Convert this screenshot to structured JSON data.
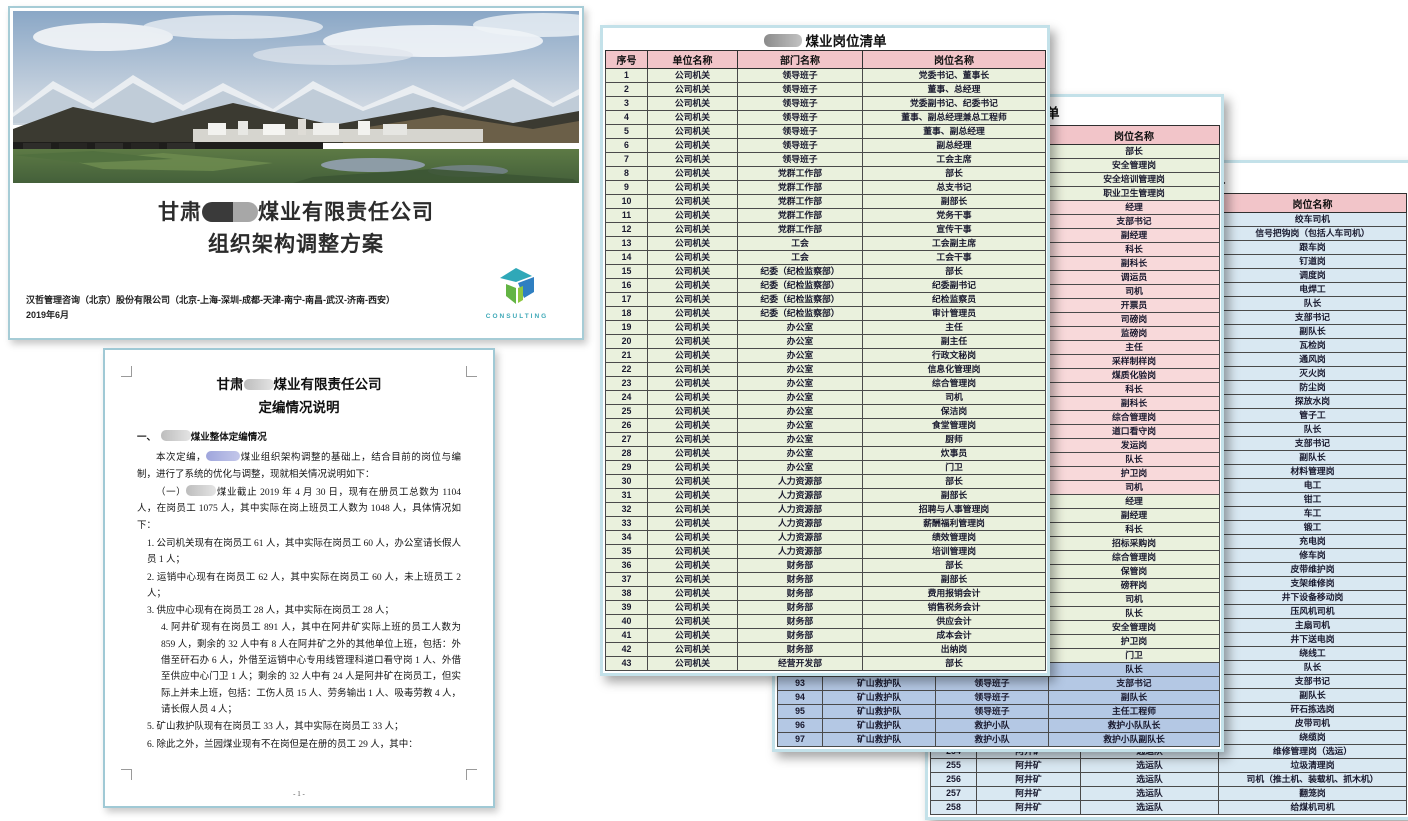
{
  "colors": {
    "g": "#eaf1dd",
    "p": "#f8d9da",
    "b": "#b4c8e4",
    "l": "#d9e8f2",
    "header_pink": "#f2c5c9",
    "sheet_border": "#c3e1e9",
    "accent_teal": "#3fa9b8"
  },
  "cover": {
    "title_prefix": "甘肃",
    "title_suffix": "煤业有限责任公司",
    "title_line2": "组织架构调整方案",
    "footer_line1": "汉哲管理咨询（北京）股份有限公司（北京-上海-深圳-成都-天津-南宁-南昌-武汉-济南-西安）",
    "footer_line2": "2019年6月",
    "logo_text": "CONSULTING"
  },
  "doc": {
    "title_prefix": "甘肃",
    "title_suffix": "煤业有限责任公司",
    "title_line2": "定编情况说明",
    "head_prefix": "一、",
    "head_text": "煤业整体定编情况",
    "para1_prefix": "本次定编，",
    "para1_text": "煤业组织架构调整的基础上，结合目前的岗位与编制，进行了系统的优化与调整，现就相关情况说明如下：",
    "para2_prefix": "（一）",
    "para2_text": "煤业截止 2019 年 4 月 30 日，现有在册员工总数为 1104 人，在岗员工 1075 人，其中实际在岗上班员工人数为 1048 人，具体情况如下：",
    "items": [
      "1. 公司机关现有在岗员工 61 人，其中实际在岗员工 60 人，办公室请长假人员 1 人；",
      "2. 运销中心现有在岗员工 62 人，其中实际在岗员工 60 人，未上班员工 2 人；",
      "3. 供应中心现有在岗员工 28 人，其中实际在岗员工 28 人；",
      "4. 阿井矿现有在岗员工 891 人，其中在阿井矿实际上班的员工人数为 859 人，剩余的 32 人中有 8 人在阿井矿之外的其他单位上班，包括：外借至矸石办 6 人，外借至运销中心专用线管理科道口看守岗 1 人、外借至供应中心门卫 1 人；剩余的 32 人中有 24 人是阿井矿在岗员工，但实际上并未上班，包括：工伤人员 15 人、劳务输出 1 人、吸毒劳教 4 人，请长假人员 4 人；",
      "5. 矿山救护队现有在岗员工 33 人，其中实际在岗员工 33 人；",
      "6. 除此之外，兰园煤业现有不在岗但是在册的员工 29 人，其中："
    ],
    "page_number": "- 1 -"
  },
  "sheets_common": {
    "title_suffix": "煤业岗位清单",
    "headers": [
      "序号",
      "单位名称",
      "部门名称",
      "岗位名称"
    ]
  },
  "sheet1": {
    "default_color": "g",
    "rows": [
      [
        "1",
        "公司机关",
        "领导班子",
        "党委书记、董事长"
      ],
      [
        "2",
        "公司机关",
        "领导班子",
        "董事、总经理"
      ],
      [
        "3",
        "公司机关",
        "领导班子",
        "党委副书记、纪委书记"
      ],
      [
        "4",
        "公司机关",
        "领导班子",
        "董事、副总经理兼总工程师"
      ],
      [
        "5",
        "公司机关",
        "领导班子",
        "董事、副总经理"
      ],
      [
        "6",
        "公司机关",
        "领导班子",
        "副总经理"
      ],
      [
        "7",
        "公司机关",
        "领导班子",
        "工会主席"
      ],
      [
        "8",
        "公司机关",
        "党群工作部",
        "部长"
      ],
      [
        "9",
        "公司机关",
        "党群工作部",
        "总支书记"
      ],
      [
        "10",
        "公司机关",
        "党群工作部",
        "副部长"
      ],
      [
        "11",
        "公司机关",
        "党群工作部",
        "党务干事"
      ],
      [
        "12",
        "公司机关",
        "党群工作部",
        "宣传干事"
      ],
      [
        "13",
        "公司机关",
        "工会",
        "工会副主席"
      ],
      [
        "14",
        "公司机关",
        "工会",
        "工会干事"
      ],
      [
        "15",
        "公司机关",
        "纪委（纪检监察部）",
        "部长"
      ],
      [
        "16",
        "公司机关",
        "纪委（纪检监察部）",
        "纪委副书记"
      ],
      [
        "17",
        "公司机关",
        "纪委（纪检监察部）",
        "纪检监察员"
      ],
      [
        "18",
        "公司机关",
        "纪委（纪检监察部）",
        "审计管理员"
      ],
      [
        "19",
        "公司机关",
        "办公室",
        "主任"
      ],
      [
        "20",
        "公司机关",
        "办公室",
        "副主任"
      ],
      [
        "21",
        "公司机关",
        "办公室",
        "行政文秘岗"
      ],
      [
        "22",
        "公司机关",
        "办公室",
        "信息化管理岗"
      ],
      [
        "23",
        "公司机关",
        "办公室",
        "综合管理岗"
      ],
      [
        "24",
        "公司机关",
        "办公室",
        "司机"
      ],
      [
        "25",
        "公司机关",
        "办公室",
        "保洁岗"
      ],
      [
        "26",
        "公司机关",
        "办公室",
        "食堂管理岗"
      ],
      [
        "27",
        "公司机关",
        "办公室",
        "厨师"
      ],
      [
        "28",
        "公司机关",
        "办公室",
        "炊事员"
      ],
      [
        "29",
        "公司机关",
        "办公室",
        "门卫"
      ],
      [
        "30",
        "公司机关",
        "人力资源部",
        "部长"
      ],
      [
        "31",
        "公司机关",
        "人力资源部",
        "副部长"
      ],
      [
        "32",
        "公司机关",
        "人力资源部",
        "招聘与人事管理岗"
      ],
      [
        "33",
        "公司机关",
        "人力资源部",
        "薪酬福利管理岗"
      ],
      [
        "34",
        "公司机关",
        "人力资源部",
        "绩效管理岗"
      ],
      [
        "35",
        "公司机关",
        "人力资源部",
        "培训管理岗"
      ],
      [
        "36",
        "公司机关",
        "财务部",
        "部长"
      ],
      [
        "37",
        "公司机关",
        "财务部",
        "副部长"
      ],
      [
        "38",
        "公司机关",
        "财务部",
        "费用报销会计"
      ],
      [
        "39",
        "公司机关",
        "财务部",
        "销售税务会计"
      ],
      [
        "40",
        "公司机关",
        "财务部",
        "供应会计"
      ],
      [
        "41",
        "公司机关",
        "财务部",
        "成本会计"
      ],
      [
        "42",
        "公司机关",
        "财务部",
        "出纳岗"
      ],
      [
        "43",
        "公司机关",
        "经营开发部",
        "部长"
      ]
    ]
  },
  "sheet2": {
    "default_color": "g",
    "rows": [
      [
        "",
        "",
        "",
        "部长",
        "g"
      ],
      [
        "",
        "",
        "",
        "安全管理岗",
        "g"
      ],
      [
        "",
        "",
        "",
        "安全培训管理岗",
        "g"
      ],
      [
        "",
        "",
        "",
        "职业卫生管理岗",
        "g"
      ],
      [
        "",
        "",
        "",
        "经理",
        "p"
      ],
      [
        "",
        "",
        "",
        "支部书记",
        "p"
      ],
      [
        "",
        "",
        "",
        "副经理",
        "p"
      ],
      [
        "",
        "",
        "",
        "科长",
        "p"
      ],
      [
        "",
        "",
        "",
        "副科长",
        "p"
      ],
      [
        "",
        "",
        "",
        "调运员",
        "p"
      ],
      [
        "",
        "",
        "",
        "司机",
        "p"
      ],
      [
        "",
        "",
        "",
        "开票员",
        "p"
      ],
      [
        "",
        "",
        "",
        "司磅岗",
        "p"
      ],
      [
        "",
        "",
        "",
        "监磅岗",
        "p"
      ],
      [
        "",
        "",
        "",
        "主任",
        "p"
      ],
      [
        "",
        "",
        "",
        "采样制样岗",
        "p"
      ],
      [
        "",
        "",
        "",
        "煤质化验岗",
        "p"
      ],
      [
        "",
        "",
        "",
        "科长",
        "p"
      ],
      [
        "",
        "",
        "",
        "副科长",
        "p"
      ],
      [
        "",
        "",
        "",
        "综合管理岗",
        "p"
      ],
      [
        "",
        "",
        "",
        "道口看守岗",
        "p"
      ],
      [
        "",
        "",
        "",
        "发运岗",
        "p"
      ],
      [
        "",
        "",
        "",
        "队长",
        "p"
      ],
      [
        "",
        "",
        "",
        "护卫岗",
        "p"
      ],
      [
        "",
        "",
        "",
        "司机",
        "p"
      ],
      [
        "",
        "",
        "",
        "经理",
        "g"
      ],
      [
        "",
        "",
        "",
        "副经理",
        "g"
      ],
      [
        "",
        "",
        "",
        "科长",
        "g"
      ],
      [
        "",
        "",
        "",
        "招标采购岗",
        "g"
      ],
      [
        "",
        "",
        "",
        "综合管理岗",
        "g"
      ],
      [
        "",
        "",
        "",
        "保管岗",
        "g"
      ],
      [
        "",
        "",
        "",
        "磅秤岗",
        "g"
      ],
      [
        "",
        "",
        "",
        "司机",
        "g"
      ],
      [
        "",
        "",
        "",
        "队长",
        "g"
      ],
      [
        "",
        "",
        "",
        "安全管理岗",
        "g"
      ],
      [
        "",
        "",
        "",
        "护卫岗",
        "g"
      ],
      [
        "",
        "",
        "",
        "门卫",
        "g"
      ],
      [
        "",
        "",
        "",
        "队长",
        "b"
      ],
      [
        "93",
        "矿山救护队",
        "领导班子",
        "支部书记",
        "b"
      ],
      [
        "94",
        "矿山救护队",
        "领导班子",
        "副队长",
        "b"
      ],
      [
        "95",
        "矿山救护队",
        "领导班子",
        "主任工程师",
        "b"
      ],
      [
        "96",
        "矿山救护队",
        "救护小队",
        "救护小队队长",
        "b"
      ],
      [
        "97",
        "矿山救护队",
        "救护小队",
        "救护小队副队长",
        "b"
      ]
    ]
  },
  "sheet3": {
    "default_color": "l",
    "title_tail": "单",
    "rows": [
      [
        "",
        "",
        "",
        "绞车司机"
      ],
      [
        "",
        "",
        "",
        "信号把钩岗（包括人车司机）"
      ],
      [
        "",
        "",
        "",
        "跟车岗"
      ],
      [
        "",
        "",
        "",
        "钉道岗"
      ],
      [
        "",
        "",
        "",
        "调度岗"
      ],
      [
        "",
        "",
        "",
        "电焊工"
      ],
      [
        "",
        "",
        "",
        "队长"
      ],
      [
        "",
        "",
        "",
        "支部书记"
      ],
      [
        "",
        "",
        "",
        "副队长"
      ],
      [
        "",
        "",
        "",
        "瓦检岗"
      ],
      [
        "",
        "",
        "",
        "通风岗"
      ],
      [
        "",
        "",
        "",
        "灭火岗"
      ],
      [
        "",
        "",
        "",
        "防尘岗"
      ],
      [
        "",
        "",
        "",
        "探放水岗"
      ],
      [
        "",
        "",
        "",
        "管子工"
      ],
      [
        "",
        "",
        "",
        "队长"
      ],
      [
        "",
        "",
        "",
        "支部书记"
      ],
      [
        "",
        "",
        "",
        "副队长"
      ],
      [
        "",
        "",
        "",
        "材料管理岗"
      ],
      [
        "",
        "",
        "",
        "电工"
      ],
      [
        "",
        "",
        "",
        "钳工"
      ],
      [
        "",
        "",
        "",
        "车工"
      ],
      [
        "",
        "",
        "",
        "锻工"
      ],
      [
        "",
        "",
        "",
        "充电岗"
      ],
      [
        "",
        "",
        "",
        "修车岗"
      ],
      [
        "",
        "",
        "",
        "皮带维护岗"
      ],
      [
        "",
        "",
        "",
        "支架维修岗"
      ],
      [
        "",
        "",
        "",
        "井下设备移动岗"
      ],
      [
        "",
        "",
        "",
        "压风机司机"
      ],
      [
        "",
        "",
        "",
        "主扇司机"
      ],
      [
        "",
        "",
        "",
        "井下送电岗"
      ],
      [
        "",
        "",
        "",
        "绕线工"
      ],
      [
        "",
        "",
        "",
        "队长"
      ],
      [
        "",
        "",
        "",
        "支部书记"
      ],
      [
        "",
        "",
        "",
        "副队长"
      ],
      [
        "",
        "",
        "",
        "矸石拣选岗"
      ],
      [
        "",
        "",
        "",
        "皮带司机"
      ],
      [
        "",
        "",
        "",
        "绕缆岗"
      ],
      [
        "254",
        "阿井矿",
        "选运队",
        "维修管理岗（选运）"
      ],
      [
        "255",
        "阿井矿",
        "选运队",
        "垃圾清理岗"
      ],
      [
        "256",
        "阿井矿",
        "选运队",
        "司机（推土机、装载机、抓木机）"
      ],
      [
        "257",
        "阿井矿",
        "选运队",
        "翻笼岗"
      ],
      [
        "258",
        "阿井矿",
        "选运队",
        "给煤机司机"
      ]
    ]
  }
}
